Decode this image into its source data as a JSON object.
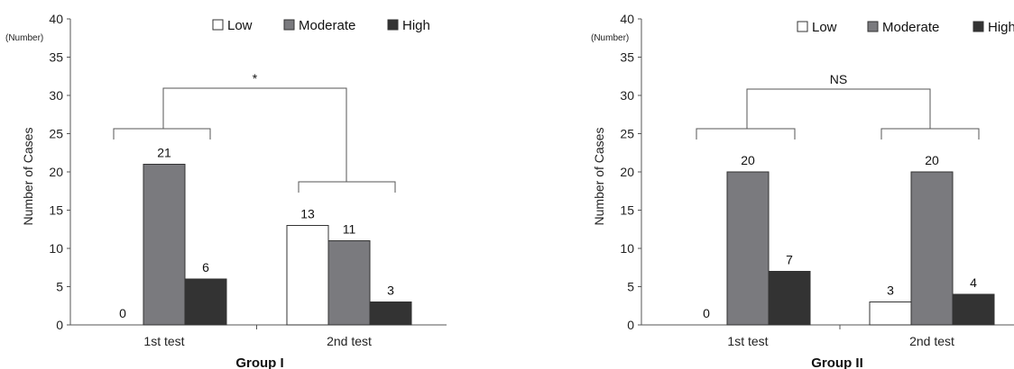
{
  "chart_data": [
    {
      "type": "bar",
      "title": "",
      "xlabel": "Group I",
      "ylabel": "Number of Cases",
      "yunit": "(Number)",
      "ylim": [
        0,
        40
      ],
      "yticks": [
        "0",
        "5",
        "10",
        "15",
        "20",
        "25",
        "30",
        "35",
        "40"
      ],
      "categories": [
        "1st test",
        "2nd test"
      ],
      "series": [
        {
          "name": "Low",
          "color": "#ffffff",
          "values": [
            0,
            13
          ]
        },
        {
          "name": "Moderate",
          "color": "#7a7a7e",
          "values": [
            21,
            11
          ]
        },
        {
          "name": "High",
          "color": "#333333",
          "values": [
            6,
            3
          ]
        }
      ],
      "significance": "*",
      "legend_position": "top-right",
      "grid": false
    },
    {
      "type": "bar",
      "title": "",
      "xlabel": "Group II",
      "ylabel": "Number of Cases",
      "yunit": "(Number)",
      "ylim": [
        0,
        40
      ],
      "yticks": [
        "0",
        "5",
        "10",
        "15",
        "20",
        "25",
        "30",
        "35",
        "40"
      ],
      "categories": [
        "1st test",
        "2nd test"
      ],
      "series": [
        {
          "name": "Low",
          "color": "#ffffff",
          "values": [
            0,
            3
          ]
        },
        {
          "name": "Moderate",
          "color": "#7a7a7e",
          "values": [
            20,
            20
          ]
        },
        {
          "name": "High",
          "color": "#333333",
          "values": [
            7,
            4
          ]
        }
      ],
      "significance": "NS",
      "legend_position": "top-right",
      "grid": false
    }
  ]
}
